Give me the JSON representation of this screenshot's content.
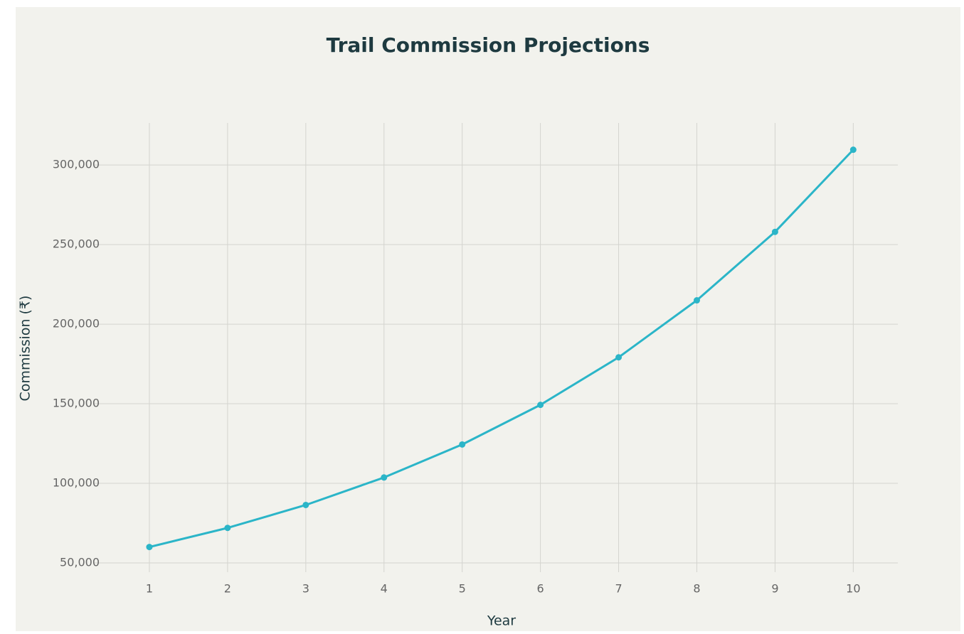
{
  "chart_data": {
    "type": "line",
    "title": "Trail Commission Projections",
    "xlabel": "Year",
    "ylabel": "Commission (₹)",
    "x": [
      1,
      2,
      3,
      4,
      5,
      6,
      7,
      8,
      9,
      10
    ],
    "series": [
      {
        "name": "Commission",
        "color": "#2bb5c8",
        "values": [
          60000,
          72000,
          86400,
          103680,
          124416,
          149299,
          179159,
          214991,
          257989,
          309587
        ]
      }
    ],
    "xlim": [
      0.3,
      10.57
    ],
    "xticks": [
      1,
      2,
      3,
      4,
      5,
      6,
      7,
      8,
      9,
      10
    ],
    "ylim": [
      44200,
      326400
    ],
    "yticks": [
      {
        "value": 50000,
        "label": "50,000"
      },
      {
        "value": 100000,
        "label": "100,000"
      },
      {
        "value": 150000,
        "label": "150,000"
      },
      {
        "value": 200000,
        "label": "200,000"
      },
      {
        "value": 250000,
        "label": "250,000"
      },
      {
        "value": 300000,
        "label": "300,000"
      }
    ],
    "grid": true
  }
}
